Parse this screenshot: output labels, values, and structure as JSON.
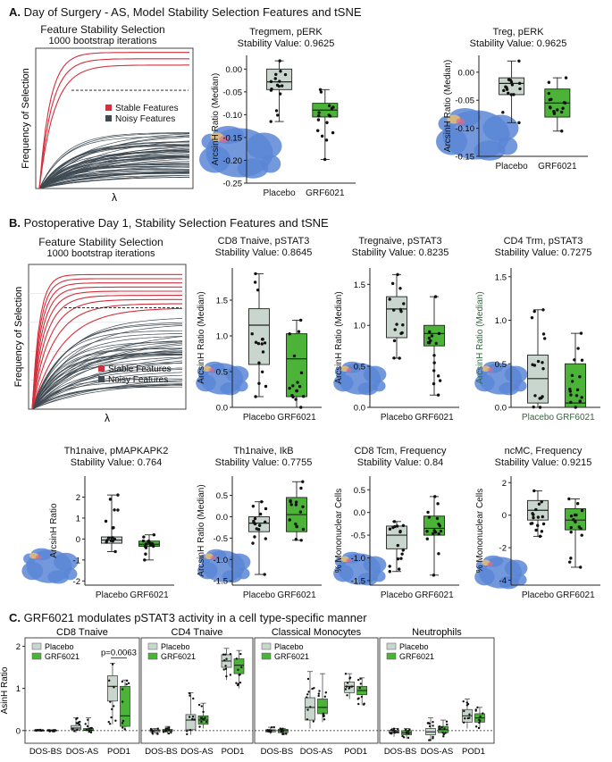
{
  "sections": {
    "A": {
      "letter": "A.",
      "title": "Day of Surgery - AS, Model Stability Selection Features and tSNE"
    },
    "B": {
      "letter": "B.",
      "title": "Postoperative Day 1, Stability Selection Features and tSNE"
    },
    "C": {
      "letter": "C.",
      "title": "GRF6021 modulates pSTAT3 activity in a cell type-specific manner"
    }
  },
  "colors": {
    "placebo": "#c9d6ce",
    "grf": "#4cb339",
    "stable": "#d32f3c",
    "noisy": "#3f4a52"
  },
  "stability": [
    {
      "title1": "Feature Stability Selection",
      "title2": "1000 bootstrap iterations",
      "ylabel": "Frequency of Selection",
      "xlabel": "λ",
      "legend": [
        "Stable Features",
        "Noisy Features"
      ],
      "n_stable": 3,
      "n_noisy": 60,
      "threshold": 0.7
    },
    {
      "title1": "Feature Stability Selection",
      "title2": "1000 bootstrap iterations",
      "ylabel": "Frequency of Selection",
      "xlabel": "λ",
      "legend": [
        "Stable Features",
        "Noisy Features"
      ],
      "n_stable": 9,
      "n_noisy": 40,
      "threshold": 0.7
    }
  ],
  "chart_data": [
    {
      "id": "A1",
      "type": "box",
      "title": "Tregmem, pERK",
      "subtitle": "Stability Value: 0.9625",
      "ylabel": "ArcsinH Ratio (Median)",
      "yticks": [
        0.0,
        -0.05,
        -0.1,
        -0.15,
        -0.2,
        -0.25
      ],
      "ytick_labels": [
        "0.00",
        "-0.05",
        "-0.10",
        "-0.15",
        "-0.20",
        "-0.25"
      ],
      "ylim": [
        -0.25,
        0.03
      ],
      "categories": [
        "Placebo",
        "GRF6021"
      ],
      "boxes": [
        {
          "min": -0.115,
          "q1": -0.045,
          "median": -0.028,
          "q3": 0.0,
          "max": 0.018
        },
        {
          "min": -0.198,
          "q1": -0.105,
          "median": -0.09,
          "q3": -0.075,
          "max": -0.045
        }
      ]
    },
    {
      "id": "A2",
      "type": "box",
      "title": "Treg, pERK",
      "subtitle": "Stability Value: 0.9625",
      "ylabel": "ArcsinH Ratio (Median)",
      "yticks": [
        0.0,
        -0.05,
        -0.1,
        -0.15
      ],
      "ytick_labels": [
        "0.00",
        "-0.05",
        "-0.10",
        "-0.15"
      ],
      "ylim": [
        -0.15,
        0.03
      ],
      "categories": [
        "Placebo",
        "GRF6021"
      ],
      "boxes": [
        {
          "min": -0.09,
          "q1": -0.04,
          "median": -0.02,
          "q3": -0.01,
          "max": 0.02
        },
        {
          "min": -0.105,
          "q1": -0.08,
          "median": -0.055,
          "q3": -0.03,
          "max": -0.01
        }
      ]
    },
    {
      "id": "B1",
      "type": "box",
      "title": "CD8 Tnaive, pSTAT3",
      "subtitle": "Stability Value: 0.8645",
      "ylabel": "ArcsinH Ratio (Median)",
      "yticks": [
        0.0,
        0.5,
        1.0,
        1.5
      ],
      "ytick_labels": [
        "0.0",
        "0.5",
        "1.0",
        "1.5"
      ],
      "ylim": [
        0,
        1.95
      ],
      "categories": [
        "Placebo",
        "GRF6021"
      ],
      "boxes": [
        {
          "min": 0.15,
          "q1": 0.6,
          "median": 1.15,
          "q3": 1.38,
          "max": 1.87
        },
        {
          "min": 0.0,
          "q1": 0.15,
          "median": 0.68,
          "q3": 1.03,
          "max": 1.22
        }
      ]
    },
    {
      "id": "B2",
      "type": "box",
      "title": "Tregnaive, pSTAT3",
      "subtitle": "Stability Value: 0.8235",
      "ylabel": "ArcsinH Ratio (Median)",
      "yticks": [
        0.0,
        0.5,
        1.0,
        1.5
      ],
      "ytick_labels": [
        "0.0",
        "0.5",
        "1.0",
        "1.5"
      ],
      "ylim": [
        0,
        1.7
      ],
      "categories": [
        "Placebo",
        "GRF6021"
      ],
      "boxes": [
        {
          "min": 0.6,
          "q1": 0.85,
          "median": 1.2,
          "q3": 1.35,
          "max": 1.62
        },
        {
          "min": 0.15,
          "q1": 0.75,
          "median": 0.9,
          "q3": 1.0,
          "max": 1.35
        }
      ]
    },
    {
      "id": "B3",
      "type": "box",
      "title": "CD4 Trm, pSTAT3",
      "subtitle": "Stability Value: 0.7275",
      "ylabel": "ArcsinH Ratio (Median)",
      "yticks": [
        0.0,
        0.5,
        1.0,
        1.5
      ],
      "ytick_labels": [
        "0.0",
        "0.5",
        "1.0",
        "1.5"
      ],
      "ylim": [
        0,
        1.6
      ],
      "categories": [
        "Placebo",
        "GRF6021"
      ],
      "label_color": "#2f6a3a",
      "boxes": [
        {
          "min": 0.0,
          "q1": 0.05,
          "median": 0.33,
          "q3": 0.6,
          "max": 1.12
        },
        {
          "min": 0.0,
          "q1": 0.0,
          "median": 0.05,
          "q3": 0.5,
          "max": 0.85
        }
      ]
    },
    {
      "id": "B4",
      "type": "box",
      "title": "Th1naive, pMAPKAPK2",
      "subtitle": "Stability Value: 0.764",
      "ylabel": "ArcsinH Ratio",
      "yticks": [
        2,
        1,
        0,
        -1,
        -2
      ],
      "ytick_labels": [
        "2",
        "1",
        "0",
        "-1",
        "-2"
      ],
      "ylim": [
        -2.2,
        3.0
      ],
      "categories": [
        "Placebo",
        "GRF6021"
      ],
      "boxes": [
        {
          "min": -0.6,
          "q1": -0.2,
          "median": -0.05,
          "q3": 0.1,
          "max": 2.1
        },
        {
          "min": -1.0,
          "q1": -0.35,
          "median": -0.25,
          "q3": -0.1,
          "max": 0.2
        }
      ]
    },
    {
      "id": "B5",
      "type": "box",
      "title": "Th1naive, IkB",
      "subtitle": "Stability Value: 0.7755",
      "ylabel": "ArcsinH Ratio (Median)",
      "yticks": [
        0.5,
        0.0,
        -0.5,
        -1.0,
        -1.5
      ],
      "ytick_labels": [
        "0.5",
        "0.0",
        "-0.5",
        "-1.0",
        "-1.5"
      ],
      "ylim": [
        -1.6,
        0.95
      ],
      "categories": [
        "Placebo",
        "GRF6021"
      ],
      "boxes": [
        {
          "min": -1.35,
          "q1": -0.35,
          "median": -0.15,
          "q3": 0.0,
          "max": 0.35
        },
        {
          "min": -0.55,
          "q1": -0.35,
          "median": 0.05,
          "q3": 0.45,
          "max": 0.82
        }
      ]
    },
    {
      "id": "B6",
      "type": "box",
      "title": "CD8 Tcm, Frequency",
      "subtitle": "Stability Value: 0.84",
      "ylabel": "% Mononuclear Cells",
      "yticks": [
        0.5,
        0.0,
        -0.5,
        -1.0,
        -1.5
      ],
      "ytick_labels": [
        "0.5",
        "0.0",
        "-0.5",
        "-1.0",
        "-1.5"
      ],
      "ylim": [
        -1.6,
        0.8
      ],
      "categories": [
        "Placebo",
        "GRF6021"
      ],
      "boxes": [
        {
          "min": -1.3,
          "q1": -0.8,
          "median": -0.5,
          "q3": -0.3,
          "max": -0.2
        },
        {
          "min": -1.38,
          "q1": -0.5,
          "median": -0.35,
          "q3": -0.08,
          "max": 0.35
        }
      ]
    },
    {
      "id": "B7",
      "type": "box",
      "title": "ncMC, Frequency",
      "subtitle": "Stability Value: 0.9215",
      "ylabel": "% Mononuclear Cells",
      "yticks": [
        2,
        0,
        -2,
        -4
      ],
      "ytick_labels": [
        "2",
        "0",
        "-2",
        "-4"
      ],
      "ylim": [
        -4.3,
        2.4
      ],
      "categories": [
        "Placebo",
        "GRF6021"
      ],
      "boxes": [
        {
          "min": -1.3,
          "q1": -0.3,
          "median": 0.3,
          "q3": 0.9,
          "max": 1.5
        },
        {
          "min": -3.2,
          "q1": -0.9,
          "median": -0.3,
          "q3": 0.4,
          "max": 1.0
        }
      ]
    },
    {
      "id": "C",
      "type": "grouped_box",
      "ylabel": "AsinH Ratio",
      "yticks": [
        0,
        1,
        2
      ],
      "ytick_labels": [
        "0",
        "1",
        "2"
      ],
      "ylim": [
        -0.3,
        2.2
      ],
      "legend": [
        "Placebo",
        "GRF6021"
      ],
      "annotation": "p=0.0063",
      "panels": [
        {
          "title": "CD8 Tnaive",
          "groups": [
            "DOS-BS",
            "DOS-AS",
            "POD1"
          ],
          "placebo": [
            [
              -0.02,
              -0.01,
              0,
              0.01,
              0.02
            ],
            [
              -0.05,
              0.02,
              0.06,
              0.12,
              0.3
            ],
            [
              0.15,
              0.7,
              1.05,
              1.3,
              1.6
            ]
          ],
          "grf": [
            [
              -0.02,
              -0.01,
              0,
              0.01,
              0.02
            ],
            [
              -0.05,
              0,
              0.01,
              0.05,
              0.3
            ],
            [
              0,
              0.1,
              0.35,
              1.05,
              1.2
            ]
          ]
        },
        {
          "title": "CD4 Tnaive",
          "groups": [
            "DOS-BS",
            "DOS-AS",
            "POD1"
          ],
          "placebo": [
            [
              -0.08,
              -0.03,
              0,
              0.02,
              0.05
            ],
            [
              -0.1,
              0.02,
              0.25,
              0.38,
              0.9
            ],
            [
              1.2,
              1.5,
              1.65,
              1.8,
              1.95
            ]
          ],
          "grf": [
            [
              -0.08,
              -0.02,
              0,
              0.03,
              0.1
            ],
            [
              0.05,
              0.15,
              0.25,
              0.35,
              0.65
            ],
            [
              1.0,
              1.35,
              1.55,
              1.7,
              1.9
            ]
          ]
        },
        {
          "title": "Classical Monocytes",
          "groups": [
            "DOS-BS",
            "DOS-AS",
            "POD1"
          ],
          "placebo": [
            [
              -0.08,
              -0.03,
              0,
              0.02,
              0.08
            ],
            [
              0.05,
              0.25,
              0.55,
              0.78,
              1.4
            ],
            [
              0.75,
              0.9,
              1.05,
              1.15,
              1.35
            ]
          ],
          "grf": [
            [
              -0.1,
              -0.05,
              0,
              0.03,
              0.05
            ],
            [
              0.2,
              0.4,
              0.55,
              0.75,
              1.35
            ],
            [
              0.6,
              0.85,
              0.95,
              1.05,
              1.25
            ]
          ]
        },
        {
          "title": "Neutrophils",
          "groups": [
            "DOS-BS",
            "DOS-AS",
            "POD1"
          ],
          "placebo": [
            [
              -0.15,
              -0.06,
              -0.03,
              0.01,
              0.05
            ],
            [
              -0.25,
              -0.1,
              -0.03,
              0.05,
              0.3
            ],
            [
              0.05,
              0.2,
              0.35,
              0.5,
              0.75
            ]
          ],
          "grf": [
            [
              -0.2,
              -0.1,
              -0.05,
              0.0,
              0.05
            ],
            [
              -0.15,
              -0.05,
              0.02,
              0.1,
              0.25
            ],
            [
              0.05,
              0.2,
              0.3,
              0.4,
              0.55
            ]
          ]
        }
      ]
    }
  ]
}
